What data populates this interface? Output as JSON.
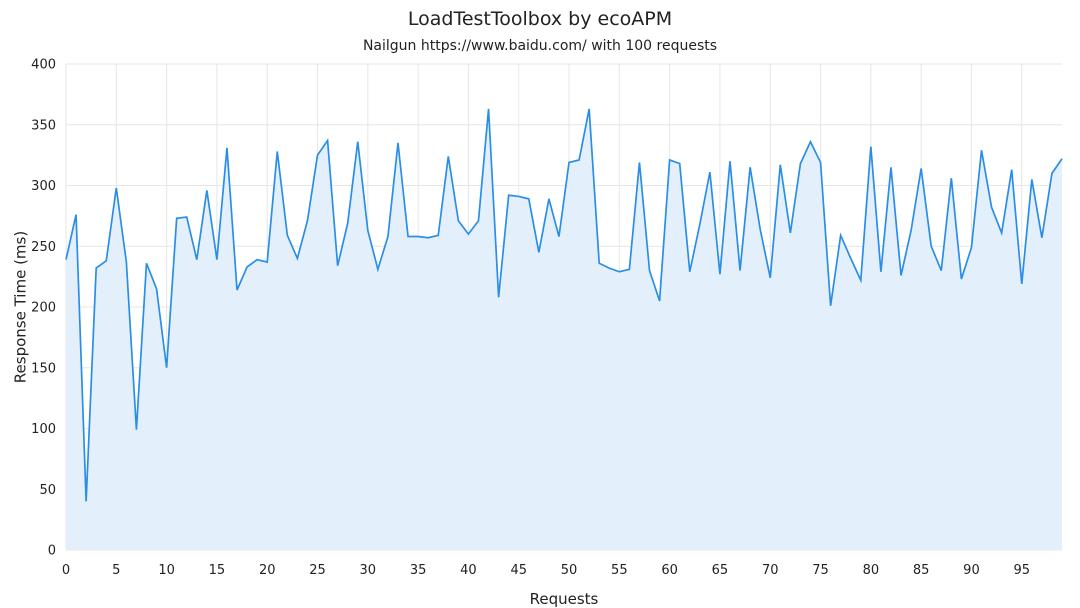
{
  "chart_data": {
    "type": "area",
    "title": "LoadTestToolbox by ecoAPM",
    "subtitle": "Nailgun https://www.baidu.com/ with 100 requests",
    "xlabel": "Requests",
    "ylabel": "Response Time (ms)",
    "xlim": [
      0,
      99
    ],
    "ylim": [
      0,
      400
    ],
    "xticks": [
      0,
      5,
      10,
      15,
      20,
      25,
      30,
      35,
      40,
      45,
      50,
      55,
      60,
      65,
      70,
      75,
      80,
      85,
      90,
      95
    ],
    "yticks": [
      0,
      50,
      100,
      150,
      200,
      250,
      300,
      350,
      400
    ],
    "grid": true,
    "colors": {
      "line": "#2b8ee6",
      "fill": "#e3f0fc",
      "grid": "#e6e6e6"
    },
    "series": [
      {
        "values": [
          239,
          276,
          40,
          232,
          238,
          298,
          237,
          99,
          236,
          215,
          150,
          273,
          274,
          239,
          296,
          239,
          331,
          214,
          233,
          239,
          237,
          328,
          259,
          240,
          271,
          325,
          337,
          234,
          269,
          336,
          263,
          231,
          258,
          335,
          258,
          258,
          257,
          259,
          324,
          271,
          260,
          271,
          363,
          208,
          292,
          291,
          289,
          245,
          289,
          258,
          319,
          321,
          363,
          236,
          232,
          229,
          231,
          319,
          230,
          205,
          321,
          318,
          229,
          268,
          311,
          227,
          320,
          230,
          315,
          264,
          224,
          317,
          261,
          318,
          336,
          319,
          201,
          259,
          240,
          222,
          332,
          229,
          315,
          226,
          263,
          314,
          250,
          230,
          306,
          223,
          249,
          329,
          282,
          261,
          313,
          219,
          305,
          257,
          310,
          322
        ]
      }
    ]
  }
}
